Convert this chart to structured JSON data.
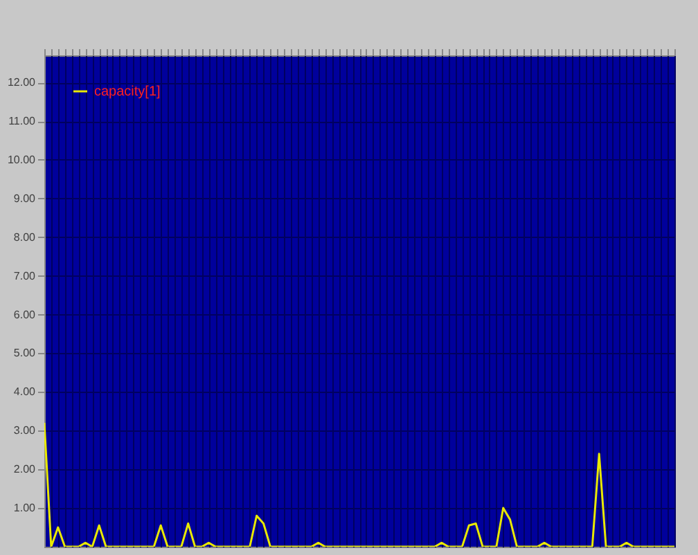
{
  "chart_data": {
    "type": "line",
    "categories": [
      null,
      null,
      null,
      null,
      null,
      null,
      null,
      null,
      null,
      null,
      null,
      null,
      null,
      null,
      null,
      null,
      null,
      null,
      null,
      null,
      null,
      null,
      null,
      null,
      null,
      null,
      null,
      null,
      null,
      null,
      null,
      null,
      null,
      null,
      null,
      null,
      null,
      null,
      null,
      null,
      null,
      null,
      null,
      null,
      null,
      null,
      null,
      null,
      null,
      null,
      null,
      null,
      null,
      null,
      null,
      null,
      null,
      null,
      null,
      null,
      null,
      null,
      null,
      null,
      null,
      null,
      null,
      null,
      null,
      null,
      null,
      null,
      null,
      null,
      null,
      null,
      null,
      null,
      null,
      null,
      null,
      null,
      null,
      null,
      null,
      null,
      null,
      null,
      null,
      null,
      null,
      null,
      null
    ],
    "series": [
      {
        "name": "capacity[1]",
        "color": "#e8e800",
        "values": [
          3.2,
          0,
          0.5,
          0,
          0,
          0,
          0.1,
          0,
          0.55,
          0,
          0,
          0,
          0,
          0,
          0,
          0,
          0,
          0.55,
          0,
          0,
          0,
          0.6,
          0,
          0,
          0.1,
          0,
          0,
          0,
          0,
          0,
          0,
          0.8,
          0.6,
          0,
          0,
          0,
          0,
          0,
          0,
          0,
          0.1,
          0,
          0,
          0,
          0,
          0,
          0,
          0,
          0,
          0,
          0,
          0,
          0,
          0,
          0,
          0,
          0,
          0,
          0.1,
          0,
          0,
          0,
          0.55,
          0.6,
          0,
          0,
          0,
          1.0,
          0.7,
          0,
          0,
          0,
          0,
          0.1,
          0,
          0,
          0,
          0,
          0,
          0,
          0,
          2.4,
          0,
          0,
          0,
          0.1,
          0,
          0,
          0,
          0,
          0,
          0,
          0
        ]
      }
    ],
    "ylim": [
      0,
      12.7
    ],
    "yticks": [
      {
        "value": 1,
        "label": "1.00"
      },
      {
        "value": 2,
        "label": "2.00"
      },
      {
        "value": 3,
        "label": "3.00"
      },
      {
        "value": 4,
        "label": "4.00"
      },
      {
        "value": 5,
        "label": "5.00"
      },
      {
        "value": 6,
        "label": "6.00"
      },
      {
        "value": 7,
        "label": "7.00"
      },
      {
        "value": 8,
        "label": "8.00"
      },
      {
        "value": 9,
        "label": "9.00"
      },
      {
        "value": 10,
        "label": "10.00"
      },
      {
        "value": 11,
        "label": "11.00"
      },
      {
        "value": 12,
        "label": "12.00"
      }
    ],
    "grid": true,
    "legend": "top left",
    "tick_labels": "y",
    "marker": "none",
    "line_style": "solid"
  }
}
